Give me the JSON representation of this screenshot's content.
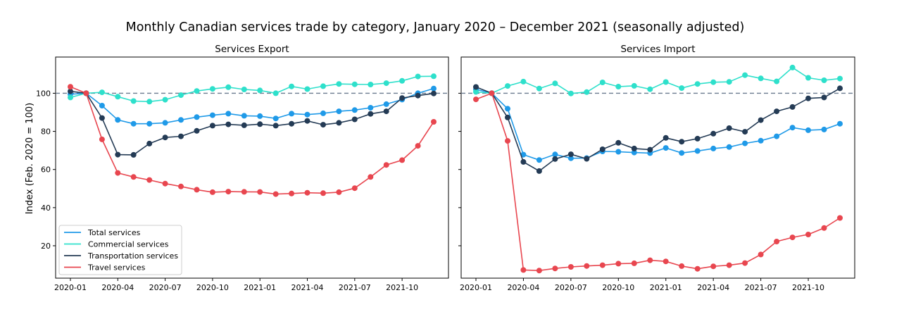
{
  "figure_title": "Monthly Canadian services trade by category, January 2020 – December 2021 (seasonally adjusted)",
  "ylabel": "Index (Feb. 2020 = 100)",
  "colors": {
    "Total services": "#1f9ae8",
    "Commercial services": "#2ee0cb",
    "Transportation services": "#243b55",
    "Travel services": "#e8464f",
    "reference": "#6b7a8f"
  },
  "chart_data": [
    {
      "type": "line",
      "title": "Services Export",
      "xlabel": "",
      "ylabel": "Index (Feb. 2020 = 100)",
      "x": [
        "2020-01",
        "2020-02",
        "2020-03",
        "2020-04",
        "2020-05",
        "2020-06",
        "2020-07",
        "2020-08",
        "2020-09",
        "2020-10",
        "2020-11",
        "2020-12",
        "2021-01",
        "2021-02",
        "2021-03",
        "2021-04",
        "2021-05",
        "2021-06",
        "2021-07",
        "2021-08",
        "2021-09",
        "2021-10",
        "2021-11",
        "2021-12"
      ],
      "xticks": [
        "2020-01",
        "2020-04",
        "2020-07",
        "2020-10",
        "2021-01",
        "2021-04",
        "2021-07",
        "2021-10"
      ],
      "yticks": [
        20,
        40,
        60,
        80,
        100
      ],
      "ylim": [
        3,
        119
      ],
      "reference_line": 100,
      "legend_position": "lower-left",
      "series": [
        {
          "name": "Total services",
          "values": [
            99.5,
            100,
            93.5,
            86,
            84,
            84,
            84.5,
            86,
            87.5,
            88.5,
            89.3,
            88.2,
            88,
            86.8,
            89.3,
            88.8,
            89.5,
            90.5,
            91.2,
            92.4,
            94.3,
            96.7,
            100,
            102.5
          ]
        },
        {
          "name": "Commercial services",
          "values": [
            97.8,
            100,
            100.5,
            98.2,
            95.9,
            95.6,
            96.6,
            99,
            101.2,
            102.3,
            103.2,
            102,
            101.5,
            100,
            103.6,
            102.2,
            103.7,
            104.9,
            104.7,
            104.6,
            105.3,
            106.5,
            108.8,
            108.9
          ]
        },
        {
          "name": "Transportation services",
          "values": [
            101,
            100,
            87,
            67.8,
            67.7,
            73.6,
            76.8,
            77.4,
            80.3,
            83,
            83.7,
            83.2,
            83.8,
            83,
            84,
            85.5,
            83.5,
            84.5,
            86.3,
            89.2,
            90.5,
            97.5,
            98.8,
            99.9
          ]
        },
        {
          "name": "Travel services",
          "values": [
            103.4,
            100,
            75.8,
            58.2,
            56.1,
            54.5,
            52.6,
            51.1,
            49.4,
            48.1,
            48.4,
            48.3,
            48.2,
            47.1,
            47.4,
            47.8,
            47.6,
            48.1,
            50.2,
            56.1,
            62.4,
            64.9,
            72.4,
            85
          ]
        }
      ]
    },
    {
      "type": "line",
      "title": "Services Import",
      "xlabel": "",
      "ylabel": "",
      "x": [
        "2020-01",
        "2020-02",
        "2020-03",
        "2020-04",
        "2020-05",
        "2020-06",
        "2020-07",
        "2020-08",
        "2020-09",
        "2020-10",
        "2020-11",
        "2020-12",
        "2021-01",
        "2021-02",
        "2021-03",
        "2021-04",
        "2021-05",
        "2021-06",
        "2021-07",
        "2021-08",
        "2021-09",
        "2021-10",
        "2021-11",
        "2021-12"
      ],
      "xticks": [
        "2020-01",
        "2020-04",
        "2020-07",
        "2020-10",
        "2021-01",
        "2021-04",
        "2021-07",
        "2021-10"
      ],
      "yticks": [
        20,
        40,
        60,
        80,
        100
      ],
      "ylim": [
        3,
        119
      ],
      "reference_line": 100,
      "series": [
        {
          "name": "Total services",
          "values": [
            102,
            100,
            91.9,
            67.8,
            65,
            67.9,
            65.9,
            66,
            69.5,
            69.3,
            68.9,
            68.6,
            71.3,
            68.7,
            69.7,
            71,
            71.8,
            73.7,
            75.1,
            77.4,
            82,
            80.6,
            81,
            84
          ]
        },
        {
          "name": "Commercial services",
          "values": [
            100.7,
            100,
            103.8,
            106.1,
            102.5,
            105.2,
            99.9,
            100.6,
            105.7,
            103.5,
            103.9,
            102.1,
            105.9,
            102.7,
            104.9,
            105.8,
            106,
            109.5,
            107.8,
            106.2,
            113.5,
            108.1,
            106.8,
            107.7
          ]
        },
        {
          "name": "Transportation services",
          "values": [
            103.3,
            100,
            87.3,
            64,
            59.2,
            65.5,
            68,
            65.6,
            70.6,
            74,
            71,
            70.4,
            76.6,
            74.6,
            76.2,
            78.8,
            81.7,
            79.8,
            85.9,
            90.5,
            92.8,
            97.3,
            97.8,
            102.6
          ]
        },
        {
          "name": "Travel services",
          "values": [
            96.8,
            100,
            75,
            7.3,
            7,
            8.1,
            8.9,
            9.4,
            9.8,
            10.6,
            10.8,
            12.4,
            11.8,
            9.3,
            7.9,
            9.2,
            9.8,
            10.9,
            15.4,
            22.2,
            24.4,
            25.9,
            29.3,
            34.6
          ]
        }
      ]
    }
  ]
}
